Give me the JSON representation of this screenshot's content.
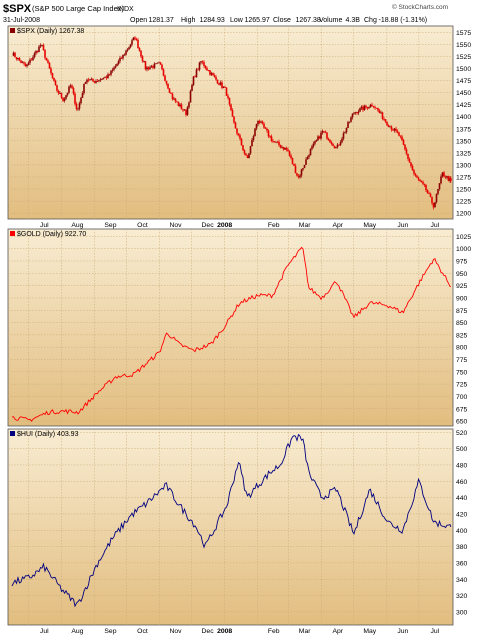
{
  "header": {
    "symbol": "$SPX",
    "name": "(S&P 500 Large Cap Index)",
    "exchange": "INDX",
    "date": "31-Jul-2008",
    "stats": [
      {
        "label": "Open",
        "value": "1281.37"
      },
      {
        "label": "High",
        "value": "1284.93"
      },
      {
        "label": "Low",
        "value": "1265.97"
      },
      {
        "label": "Close",
        "value": "1267.38"
      },
      {
        "label": "Volume",
        "value": "4.3B"
      },
      {
        "label": "Chg",
        "value": "-18.88 (-1.31%)"
      }
    ],
    "brand": "© StockCharts.com"
  },
  "colors": {
    "background_top": "#f8ecd2",
    "background_bottom": "#e2bd7f",
    "grid": "#c9aa77",
    "spx": "#8b0000",
    "spx_down": "#e60000",
    "gold": "#ff0000",
    "hui": "#000080"
  },
  "x_ticks": [
    "Jul",
    "Aug",
    "Sep",
    "Oct",
    "Nov",
    "Dec",
    "2008",
    "Feb",
    "Mar",
    "Apr",
    "May",
    "Jun",
    "Jul"
  ],
  "chart_data": [
    {
      "type": "line",
      "style": "candlestick",
      "title": "$SPX (Daily) 1267.38",
      "ylim": [
        1188,
        1588
      ],
      "yticks": [
        1200,
        1225,
        1250,
        1275,
        1300,
        1325,
        1350,
        1375,
        1400,
        1425,
        1450,
        1475,
        1500,
        1525,
        1550,
        1575
      ],
      "x": [
        "2007-06-15",
        "2007-06-29",
        "2007-07-13",
        "2007-07-27",
        "2007-08-03",
        "2007-08-10",
        "2007-08-16",
        "2007-08-24",
        "2007-08-31",
        "2007-09-14",
        "2007-09-28",
        "2007-10-09",
        "2007-10-19",
        "2007-11-01",
        "2007-11-13",
        "2007-11-26",
        "2007-12-03",
        "2007-12-10",
        "2007-12-21",
        "2008-01-02",
        "2008-01-09",
        "2008-01-22",
        "2008-02-01",
        "2008-02-15",
        "2008-02-29",
        "2008-03-10",
        "2008-03-21",
        "2008-04-02",
        "2008-04-15",
        "2008-05-01",
        "2008-05-19",
        "2008-06-02",
        "2008-06-13",
        "2008-06-27",
        "2008-07-07",
        "2008-07-15",
        "2008-07-23",
        "2008-07-31"
      ],
      "values": [
        1533,
        1503,
        1550,
        1458,
        1435,
        1466,
        1411,
        1479,
        1473,
        1484,
        1527,
        1565,
        1500,
        1509,
        1439,
        1407,
        1481,
        1515,
        1484,
        1455,
        1390,
        1310,
        1395,
        1350,
        1330,
        1273,
        1329,
        1370,
        1334,
        1409,
        1426,
        1385,
        1360,
        1278,
        1252,
        1215,
        1282,
        1267
      ]
    },
    {
      "type": "line",
      "title": "$GOLD (Daily) 922.70",
      "ylim": [
        640,
        1040
      ],
      "yticks": [
        650,
        675,
        700,
        725,
        750,
        775,
        800,
        825,
        850,
        875,
        900,
        925,
        950,
        975,
        1000,
        1025
      ],
      "x": [
        "2007-06-15",
        "2007-07-02",
        "2007-07-20",
        "2007-08-03",
        "2007-08-17",
        "2007-09-04",
        "2007-09-21",
        "2007-10-08",
        "2007-11-01",
        "2007-11-08",
        "2007-11-20",
        "2007-12-03",
        "2007-12-19",
        "2008-01-02",
        "2008-01-15",
        "2008-02-01",
        "2008-02-15",
        "2008-02-29",
        "2008-03-14",
        "2008-03-20",
        "2008-04-01",
        "2008-04-15",
        "2008-05-01",
        "2008-05-16",
        "2008-06-02",
        "2008-06-16",
        "2008-07-01",
        "2008-07-15",
        "2008-07-31"
      ],
      "values": [
        658,
        652,
        668,
        670,
        668,
        708,
        740,
        745,
        790,
        830,
        805,
        793,
        806,
        845,
        890,
        905,
        905,
        965,
        1003,
        920,
        900,
        935,
        860,
        890,
        885,
        870,
        930,
        980,
        923
      ]
    },
    {
      "type": "line",
      "title": "$HUI (Daily) 403.93",
      "ylim": [
        284,
        524
      ],
      "yticks": [
        300,
        320,
        340,
        360,
        380,
        400,
        420,
        440,
        460,
        480,
        500,
        520
      ],
      "x": [
        "2007-06-15",
        "2007-07-02",
        "2007-07-16",
        "2007-08-01",
        "2007-08-16",
        "2007-09-04",
        "2007-09-18",
        "2007-10-05",
        "2007-10-19",
        "2007-11-07",
        "2007-11-20",
        "2007-12-05",
        "2007-12-14",
        "2008-01-03",
        "2008-01-14",
        "2008-01-22",
        "2008-02-01",
        "2008-02-12",
        "2008-02-22",
        "2008-03-05",
        "2008-03-14",
        "2008-03-20",
        "2008-04-01",
        "2008-04-15",
        "2008-05-01",
        "2008-05-16",
        "2008-06-02",
        "2008-06-16",
        "2008-07-01",
        "2008-07-15",
        "2008-07-31"
      ],
      "values": [
        335,
        342,
        355,
        328,
        308,
        360,
        390,
        418,
        432,
        455,
        430,
        405,
        380,
        430,
        485,
        440,
        455,
        470,
        480,
        515,
        512,
        470,
        440,
        450,
        395,
        450,
        410,
        400,
        460,
        410,
        404
      ]
    }
  ]
}
